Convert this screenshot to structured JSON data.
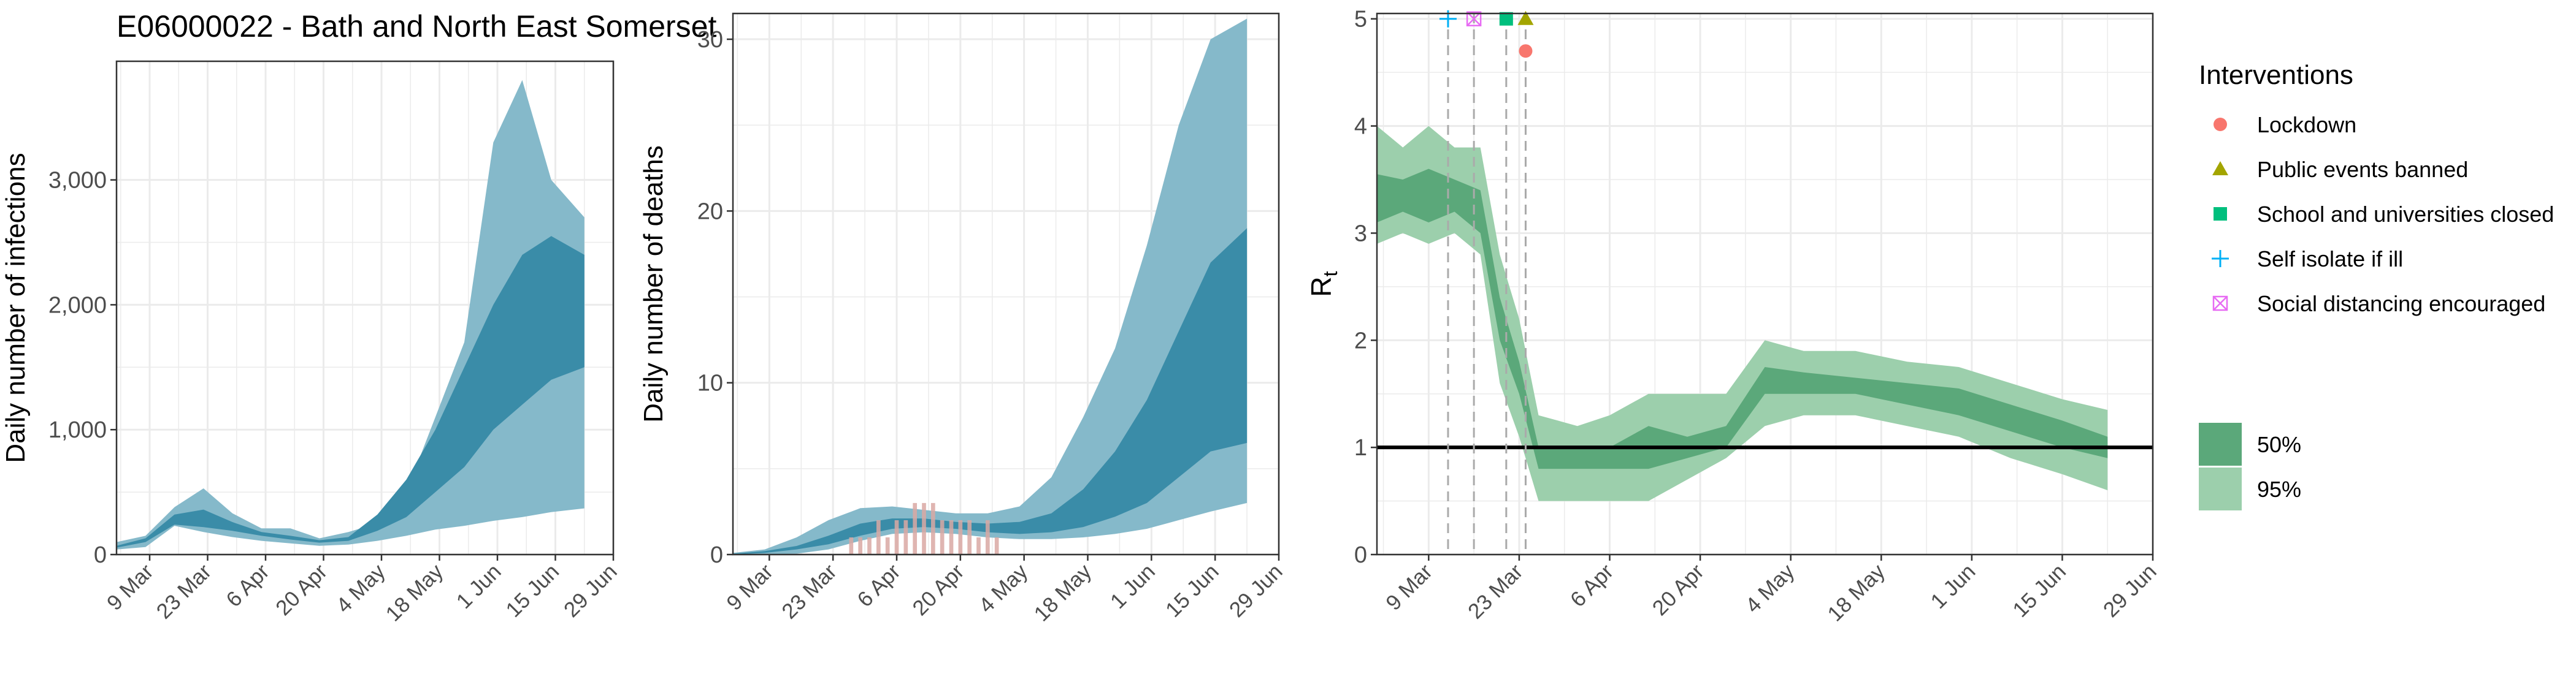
{
  "title": "E06000022 - Bath and North East Somerset",
  "x_tick_labels": [
    "9 Mar",
    "23 Mar",
    "6 Apr",
    "20 Apr",
    "4 May",
    "18 May",
    "1 Jun",
    "15 Jun",
    "29 Jun"
  ],
  "colors": {
    "ci95_blue": "#85b9ca",
    "ci50_blue": "#3a8ca8",
    "death_bar": "#d9a8a3",
    "ci95_green": "#9ccfac",
    "ci50_green": "#5ba87a",
    "grid": "#ebebeb",
    "lockdown": "#f8766d",
    "public_events": "#a3a500",
    "school": "#00bf7d",
    "self_isolate": "#00b0f6",
    "social_distancing": "#e76bf3"
  },
  "legend": {
    "interventions_title": "Interventions",
    "interventions": [
      {
        "label": "Lockdown",
        "icon": "circle-icon",
        "color": "#f8766d"
      },
      {
        "label": "Public events banned",
        "icon": "triangle-icon",
        "color": "#a3a500"
      },
      {
        "label": "School and universities closed",
        "icon": "square-icon",
        "color": "#00bf7d"
      },
      {
        "label": "Self isolate if ill",
        "icon": "plus-icon",
        "color": "#00b0f6"
      },
      {
        "label": "Social distancing encouraged",
        "icon": "boxed-x-icon",
        "color": "#e76bf3"
      }
    ],
    "ci": [
      {
        "label": "50%",
        "color": "#5ba87a"
      },
      {
        "label": "95%",
        "color": "#9ccfac"
      }
    ]
  },
  "chart_data": [
    {
      "type": "area",
      "title": "E06000022 - Bath and North East Somerset",
      "xlabel": "",
      "ylabel": "Daily number of infections",
      "y_tick_labels": [
        "0",
        "1,000",
        "2,000",
        "3,000"
      ],
      "y_ticks": [
        0,
        1000,
        2000,
        3000
      ],
      "ylim": [
        0,
        3950
      ],
      "x_dates": [
        "2020-03-01",
        "2020-03-08",
        "2020-03-15",
        "2020-03-22",
        "2020-03-29",
        "2020-04-05",
        "2020-04-12",
        "2020-04-19",
        "2020-04-26",
        "2020-05-03",
        "2020-05-10",
        "2020-05-17",
        "2020-05-24",
        "2020-05-31",
        "2020-06-07",
        "2020-06-14",
        "2020-06-22"
      ],
      "series": [
        {
          "band": "95%",
          "lower": [
            40,
            60,
            230,
            180,
            140,
            110,
            90,
            70,
            80,
            110,
            150,
            200,
            230,
            270,
            300,
            340,
            370
          ],
          "upper": [
            100,
            150,
            380,
            530,
            330,
            210,
            210,
            130,
            180,
            250,
            500,
            1100,
            1700,
            3300,
            3800,
            3000,
            2700
          ]
        },
        {
          "band": "50%",
          "lower": [
            55,
            100,
            240,
            220,
            190,
            150,
            120,
            95,
            110,
            190,
            300,
            500,
            700,
            1000,
            1200,
            1400,
            1500
          ],
          "upper": [
            70,
            130,
            320,
            360,
            260,
            180,
            150,
            115,
            140,
            320,
            600,
            1000,
            1500,
            2000,
            2400,
            2550,
            2400
          ]
        }
      ]
    },
    {
      "type": "area",
      "title": "",
      "xlabel": "",
      "ylabel": "Daily number of deaths",
      "y_tick_labels": [
        "0",
        "10",
        "20",
        "30"
      ],
      "y_ticks": [
        0,
        10,
        20,
        30
      ],
      "ylim": [
        0,
        31.5
      ],
      "x_dates": [
        "2020-03-01",
        "2020-03-08",
        "2020-03-15",
        "2020-03-22",
        "2020-03-29",
        "2020-04-05",
        "2020-04-12",
        "2020-04-19",
        "2020-04-26",
        "2020-05-03",
        "2020-05-10",
        "2020-05-17",
        "2020-05-24",
        "2020-05-31",
        "2020-06-07",
        "2020-06-14",
        "2020-06-22"
      ],
      "series": [
        {
          "band": "95%",
          "lower": [
            0,
            0,
            0.05,
            0.3,
            0.8,
            1.2,
            1.3,
            1.2,
            1.0,
            0.9,
            0.9,
            1.0,
            1.2,
            1.5,
            2.0,
            2.5,
            3.0
          ],
          "upper": [
            0.1,
            0.3,
            1.0,
            2.0,
            2.7,
            2.8,
            2.6,
            2.4,
            2.4,
            2.8,
            4.5,
            8.0,
            12.0,
            18.0,
            25.0,
            30.0,
            31.2
          ]
        },
        {
          "band": "50%",
          "lower": [
            0,
            0.1,
            0.3,
            0.6,
            1.1,
            1.5,
            1.6,
            1.5,
            1.3,
            1.2,
            1.3,
            1.6,
            2.2,
            3.0,
            4.5,
            6.0,
            6.5
          ]
        },
        {
          "band": "50%-upper",
          "upper": [
            0.05,
            0.2,
            0.5,
            1.1,
            1.8,
            2.1,
            2.1,
            1.9,
            1.8,
            1.9,
            2.4,
            3.8,
            6.0,
            9.0,
            13.0,
            17.0,
            19.0
          ]
        }
      ],
      "observed_deaths": {
        "dates": [
          "2020-03-27",
          "2020-03-29",
          "2020-03-31",
          "2020-04-02",
          "2020-04-04",
          "2020-04-06",
          "2020-04-08",
          "2020-04-10",
          "2020-04-12",
          "2020-04-14",
          "2020-04-16",
          "2020-04-18",
          "2020-04-20",
          "2020-04-22",
          "2020-04-24",
          "2020-04-26",
          "2020-04-28"
        ],
        "values": [
          1,
          1,
          1,
          2,
          1,
          2,
          2,
          3,
          3,
          3,
          2,
          2,
          2,
          2,
          1,
          2,
          1
        ]
      }
    },
    {
      "type": "area",
      "title": "",
      "xlabel": "",
      "ylabel": "Rt",
      "ylabel_main": "R",
      "ylabel_sub": "t",
      "y_tick_labels": [
        "0",
        "1",
        "2",
        "3",
        "4",
        "5"
      ],
      "y_ticks": [
        0,
        1,
        2,
        3,
        4,
        5
      ],
      "ylim": [
        0,
        5.05
      ],
      "reference_line": 1,
      "x_dates": [
        "2020-03-01",
        "2020-03-05",
        "2020-03-09",
        "2020-03-13",
        "2020-03-17",
        "2020-03-20",
        "2020-03-23",
        "2020-03-26",
        "2020-04-01",
        "2020-04-06",
        "2020-04-12",
        "2020-04-18",
        "2020-04-24",
        "2020-04-30",
        "2020-05-06",
        "2020-05-14",
        "2020-05-22",
        "2020-05-30",
        "2020-06-07",
        "2020-06-15",
        "2020-06-22"
      ],
      "series": [
        {
          "band": "95%",
          "lower": [
            2.9,
            3.0,
            2.9,
            3.0,
            2.8,
            1.6,
            1.1,
            0.5,
            0.5,
            0.5,
            0.5,
            0.7,
            0.9,
            1.2,
            1.3,
            1.3,
            1.2,
            1.1,
            0.9,
            0.75,
            0.6
          ],
          "upper": [
            4.0,
            3.8,
            4.0,
            3.8,
            3.8,
            2.8,
            2.2,
            1.3,
            1.2,
            1.3,
            1.5,
            1.5,
            1.5,
            2.0,
            1.9,
            1.9,
            1.8,
            1.75,
            1.6,
            1.45,
            1.35
          ]
        },
        {
          "band": "50%",
          "lower": [
            3.1,
            3.2,
            3.1,
            3.2,
            3.0,
            2.0,
            1.5,
            0.8,
            0.8,
            0.8,
            0.8,
            0.9,
            1.0,
            1.5,
            1.5,
            1.5,
            1.4,
            1.3,
            1.15,
            1.0,
            0.9
          ],
          "upper": [
            3.55,
            3.5,
            3.6,
            3.5,
            3.4,
            2.4,
            1.8,
            1.0,
            1.0,
            1.0,
            1.2,
            1.1,
            1.2,
            1.75,
            1.7,
            1.65,
            1.6,
            1.55,
            1.4,
            1.25,
            1.1
          ]
        }
      ],
      "interventions": [
        {
          "name": "Self isolate if ill",
          "date": "2020-03-12",
          "y": 5.0
        },
        {
          "name": "Social distancing encouraged",
          "date": "2020-03-16",
          "y": 5.0
        },
        {
          "name": "School and universities closed",
          "date": "2020-03-21",
          "y": 5.0
        },
        {
          "name": "Public events banned",
          "date": "2020-03-24",
          "y": 5.0
        },
        {
          "name": "Lockdown",
          "date": "2020-03-24",
          "y": 4.7
        }
      ]
    }
  ]
}
